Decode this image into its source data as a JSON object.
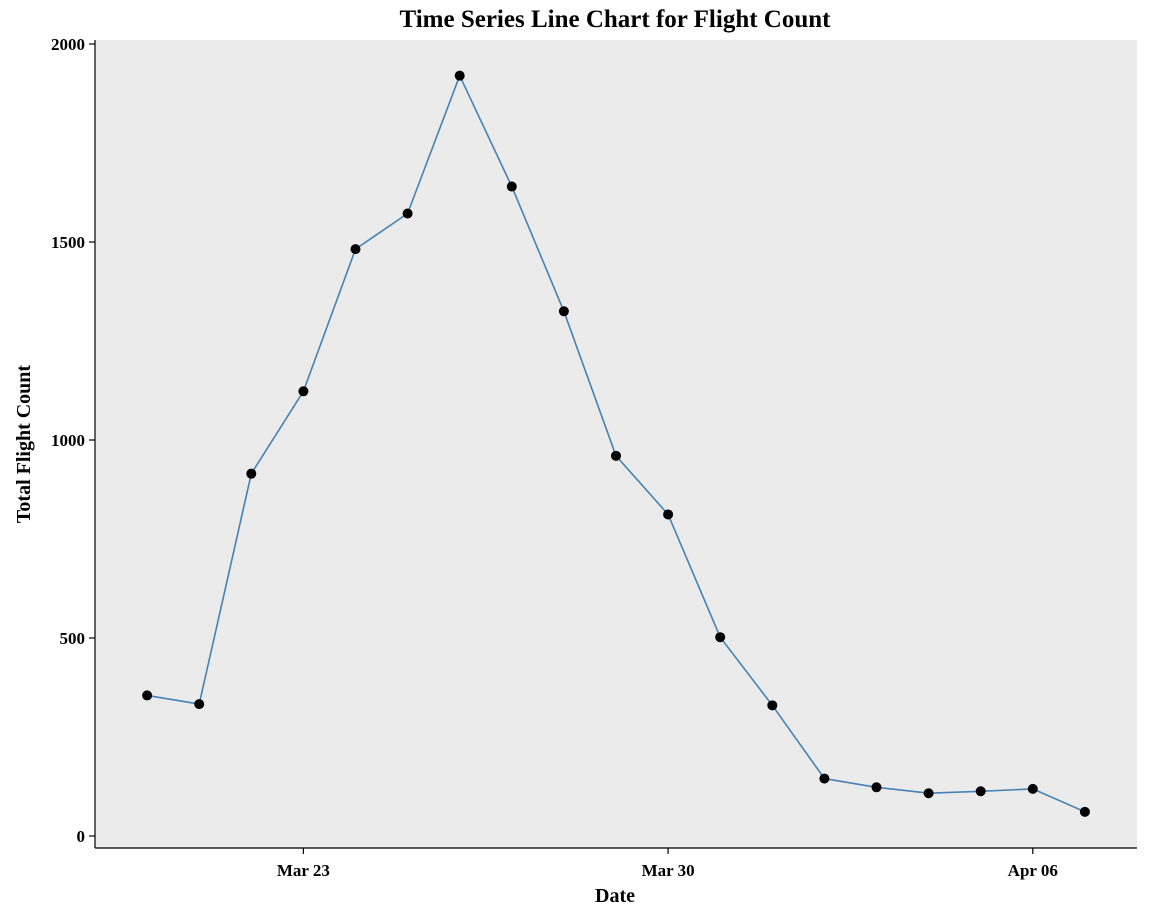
{
  "chart_data": {
    "type": "line",
    "title": "Time Series Line Chart for Flight Count",
    "xlabel": "Date",
    "ylabel": "Total Flight Count",
    "x": [
      "2020-03-20",
      "2020-03-21",
      "2020-03-22",
      "2020-03-23",
      "2020-03-24",
      "2020-03-25",
      "2020-03-26",
      "2020-03-27",
      "2020-03-28",
      "2020-03-29",
      "2020-03-30",
      "2020-03-31",
      "2020-04-01",
      "2020-04-02",
      "2020-04-03",
      "2020-04-04",
      "2020-04-05",
      "2020-04-06",
      "2020-04-07"
    ],
    "series": [
      {
        "values": [
          355,
          333,
          915,
          1123,
          1482,
          1572,
          1920,
          1640,
          1325,
          960,
          812,
          502,
          330,
          145,
          123,
          108,
          113,
          119,
          61
        ]
      }
    ],
    "xlim": [
      "2020-03-19",
      "2020-04-08"
    ],
    "ylim": [
      0,
      2000
    ],
    "xticks": [
      {
        "date": "2020-03-23",
        "label": "Mar 23"
      },
      {
        "date": "2020-03-30",
        "label": "Mar 30"
      },
      {
        "date": "2020-04-06",
        "label": "Apr 06"
      }
    ],
    "yticks": [
      0,
      500,
      1000,
      1500,
      2000
    ],
    "line_color": "#4682b4",
    "point_color": "#000000",
    "panel_background": "#ebebeb",
    "grid": false
  }
}
